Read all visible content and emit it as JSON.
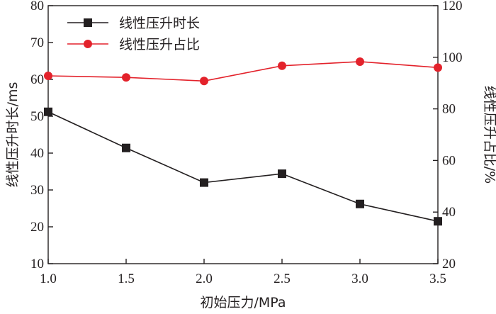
{
  "chart_data": {
    "type": "line",
    "x": [
      1.0,
      1.5,
      2.0,
      2.5,
      3.0,
      3.5
    ],
    "x_tick_labels": [
      "1.0",
      "1.5",
      "2.0",
      "2.5",
      "3.0",
      "3.5"
    ],
    "xlim": [
      1.0,
      3.5
    ],
    "xlabel": "初始压力/MPa",
    "ylabel_left": "线性压升时长/ms",
    "ylabel_right": "线性压升占比/%",
    "ylim_left": [
      10,
      80
    ],
    "ylim_right": [
      20,
      120
    ],
    "y_ticks_left": [
      10,
      20,
      30,
      40,
      50,
      60,
      70,
      80
    ],
    "y_ticks_right": [
      20,
      40,
      60,
      80,
      100,
      120
    ],
    "grid": false,
    "legend_position": "top-left",
    "series": [
      {
        "name": "线性压升时长",
        "axis": "left",
        "marker": "square",
        "color": "#231f20",
        "values": [
          51.2,
          41.4,
          32.0,
          34.4,
          26.2,
          21.5
        ]
      },
      {
        "name": "线性压升占比",
        "axis": "right",
        "marker": "circle",
        "color": "#e3222b",
        "values": [
          92.8,
          92.2,
          90.8,
          96.7,
          98.3,
          96.0
        ]
      }
    ]
  }
}
